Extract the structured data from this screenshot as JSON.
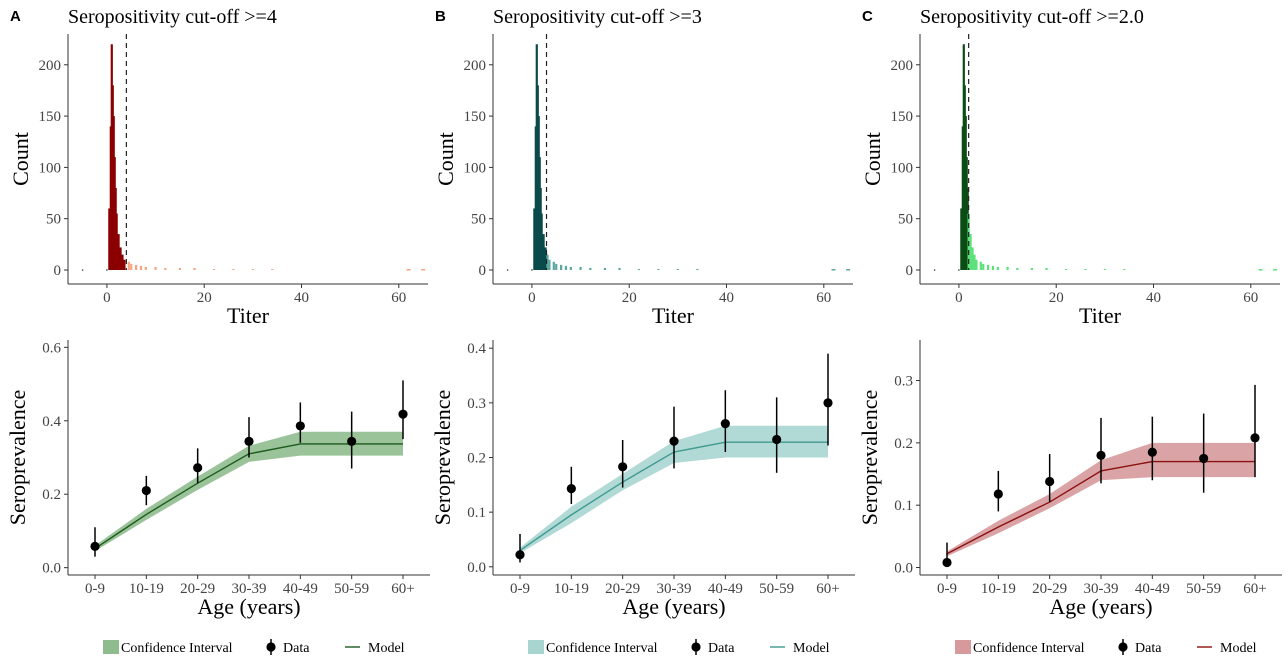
{
  "figure": {
    "legend": {
      "ci_label": "Confidence Interval",
      "data_label": "Data",
      "model_label": "Model"
    }
  },
  "panels": [
    {
      "letter": "A",
      "title": "Seropositivity cut-off >=4",
      "colors": {
        "seroneg": "#8b0000",
        "seropos": "#f4a582",
        "ci": "#8fbc8f",
        "model": "#1e5a1e"
      }
    },
    {
      "letter": "B",
      "title": "Seropositivity cut-off >=3",
      "colors": {
        "seroneg": "#0b4a4a",
        "seropos": "#5aa8a0",
        "ci": "#a8d5d0",
        "model": "#3f9a90"
      }
    },
    {
      "letter": "C",
      "title": "Seropositivity cut-off >=2.0",
      "colors": {
        "seroneg": "#0b4d14",
        "seropos": "#5ee07a",
        "ci": "#d69a9c",
        "model": "#8b1010"
      }
    }
  ],
  "chart_data": [
    {
      "type": "bar",
      "panel": "A",
      "title": "Seropositivity cut-off >=4",
      "xlabel": "Titer",
      "ylabel": "Count",
      "xlim": [
        -8,
        66
      ],
      "ylim": [
        0,
        230
      ],
      "xticks": [
        "0",
        "20",
        "40",
        "60"
      ],
      "yticks": [
        "0",
        "50",
        "100",
        "150",
        "200"
      ],
      "cutoff": 4,
      "series": [
        {
          "titer": [
            0.5,
            0.8,
            1.0,
            1.2,
            1.4,
            1.6,
            1.8,
            2.0,
            2.4,
            2.8,
            3.2,
            3.6
          ],
          "count": [
            60,
            140,
            220,
            180,
            150,
            110,
            80,
            55,
            35,
            22,
            15,
            10
          ]
        },
        {
          "titer": [
            4.5,
            5,
            6,
            7,
            8,
            10,
            12,
            15,
            18,
            22,
            26,
            30,
            34
          ],
          "count": [
            8,
            6,
            5,
            4,
            3,
            3,
            2,
            2,
            2,
            1,
            1,
            1,
            1
          ]
        }
      ]
    },
    {
      "type": "line",
      "panel": "A",
      "xlabel": "Age (years)",
      "ylabel": "Seroprevalence",
      "categories": [
        "0-9",
        "10-19",
        "20-29",
        "30-39",
        "40-49",
        "50-59",
        "60+"
      ],
      "ylim": [
        -0.02,
        0.62
      ],
      "yticks": [
        "0.0",
        "0.2",
        "0.4",
        "0.6"
      ],
      "data": [
        0.058,
        0.21,
        0.272,
        0.344,
        0.386,
        0.344,
        0.418
      ],
      "data_low": [
        0.03,
        0.17,
        0.23,
        0.3,
        0.34,
        0.27,
        0.35
      ],
      "data_high": [
        0.11,
        0.25,
        0.325,
        0.41,
        0.45,
        0.425,
        0.51
      ],
      "model": [
        0.052,
        0.145,
        0.23,
        0.31,
        0.337,
        0.337,
        0.337
      ],
      "ci_low": [
        0.045,
        0.13,
        0.212,
        0.288,
        0.305,
        0.305,
        0.305
      ],
      "ci_high": [
        0.06,
        0.16,
        0.248,
        0.332,
        0.37,
        0.37,
        0.37
      ]
    },
    {
      "type": "bar",
      "panel": "B",
      "title": "Seropositivity cut-off >=3",
      "xlabel": "Titer",
      "ylabel": "Count",
      "xlim": [
        -8,
        66
      ],
      "ylim": [
        0,
        230
      ],
      "xticks": [
        "0",
        "20",
        "40",
        "60"
      ],
      "yticks": [
        "0",
        "50",
        "100",
        "150",
        "200"
      ],
      "cutoff": 3,
      "series": [
        {
          "titer": [
            0.5,
            0.8,
            1.0,
            1.2,
            1.4,
            1.6,
            1.8,
            2.0,
            2.4,
            2.8
          ],
          "count": [
            60,
            140,
            220,
            180,
            150,
            110,
            80,
            55,
            35,
            22
          ]
        },
        {
          "titer": [
            3.2,
            3.6,
            4.5,
            5,
            6,
            7,
            8,
            10,
            12,
            15,
            18,
            22,
            26,
            30,
            34
          ],
          "count": [
            15,
            10,
            8,
            6,
            5,
            4,
            3,
            3,
            2,
            2,
            2,
            1,
            1,
            1,
            1
          ]
        }
      ]
    },
    {
      "type": "line",
      "panel": "B",
      "xlabel": "Age (years)",
      "ylabel": "Seroprevalence",
      "categories": [
        "0-9",
        "10-19",
        "20-29",
        "30-39",
        "40-49",
        "50-59",
        "60+"
      ],
      "ylim": [
        -0.015,
        0.415
      ],
      "yticks": [
        "0.0",
        "0.1",
        "0.2",
        "0.3",
        "0.4"
      ],
      "data": [
        0.022,
        0.143,
        0.183,
        0.23,
        0.262,
        0.233,
        0.3
      ],
      "data_low": [
        0.008,
        0.115,
        0.145,
        0.18,
        0.21,
        0.172,
        0.222
      ],
      "data_high": [
        0.06,
        0.183,
        0.232,
        0.293,
        0.323,
        0.31,
        0.39
      ],
      "model": [
        0.03,
        0.095,
        0.155,
        0.21,
        0.228,
        0.228,
        0.228
      ],
      "ci_low": [
        0.025,
        0.08,
        0.14,
        0.19,
        0.2,
        0.2,
        0.2
      ],
      "ci_high": [
        0.035,
        0.11,
        0.17,
        0.23,
        0.258,
        0.258,
        0.258
      ]
    },
    {
      "type": "bar",
      "panel": "C",
      "title": "Seropositivity cut-off >=2.0",
      "xlabel": "Titer",
      "ylabel": "Count",
      "xlim": [
        -8,
        66
      ],
      "ylim": [
        0,
        230
      ],
      "xticks": [
        "0",
        "20",
        "40",
        "60"
      ],
      "yticks": [
        "0",
        "50",
        "100",
        "150",
        "200"
      ],
      "cutoff": 2,
      "series": [
        {
          "titer": [
            0.5,
            0.8,
            1.0,
            1.2,
            1.4,
            1.6,
            1.8
          ],
          "count": [
            60,
            140,
            220,
            180,
            150,
            110,
            80
          ]
        },
        {
          "titer": [
            2.0,
            2.4,
            2.8,
            3.2,
            3.6,
            4.5,
            5,
            6,
            7,
            8,
            10,
            12,
            15,
            18,
            22,
            26,
            30,
            34
          ],
          "count": [
            55,
            35,
            22,
            15,
            10,
            8,
            6,
            5,
            4,
            3,
            3,
            2,
            2,
            2,
            1,
            1,
            1,
            1
          ]
        }
      ]
    },
    {
      "type": "line",
      "panel": "C",
      "xlabel": "Age (years)",
      "ylabel": "Seroprevalence",
      "categories": [
        "0-9",
        "10-19",
        "20-29",
        "30-39",
        "40-49",
        "50-59",
        "60+"
      ],
      "ylim": [
        -0.012,
        0.365
      ],
      "yticks": [
        "0.0",
        "0.1",
        "0.2",
        "0.3"
      ],
      "data": [
        0.008,
        0.118,
        0.138,
        0.18,
        0.185,
        0.175,
        0.208
      ],
      "data_low": [
        0.003,
        0.09,
        0.105,
        0.135,
        0.14,
        0.12,
        0.145
      ],
      "data_high": [
        0.04,
        0.155,
        0.182,
        0.24,
        0.242,
        0.247,
        0.293
      ],
      "model": [
        0.022,
        0.065,
        0.105,
        0.155,
        0.17,
        0.17,
        0.17
      ],
      "ci_low": [
        0.018,
        0.055,
        0.095,
        0.14,
        0.145,
        0.145,
        0.145
      ],
      "ci_high": [
        0.026,
        0.075,
        0.118,
        0.172,
        0.2,
        0.2,
        0.2
      ]
    }
  ]
}
